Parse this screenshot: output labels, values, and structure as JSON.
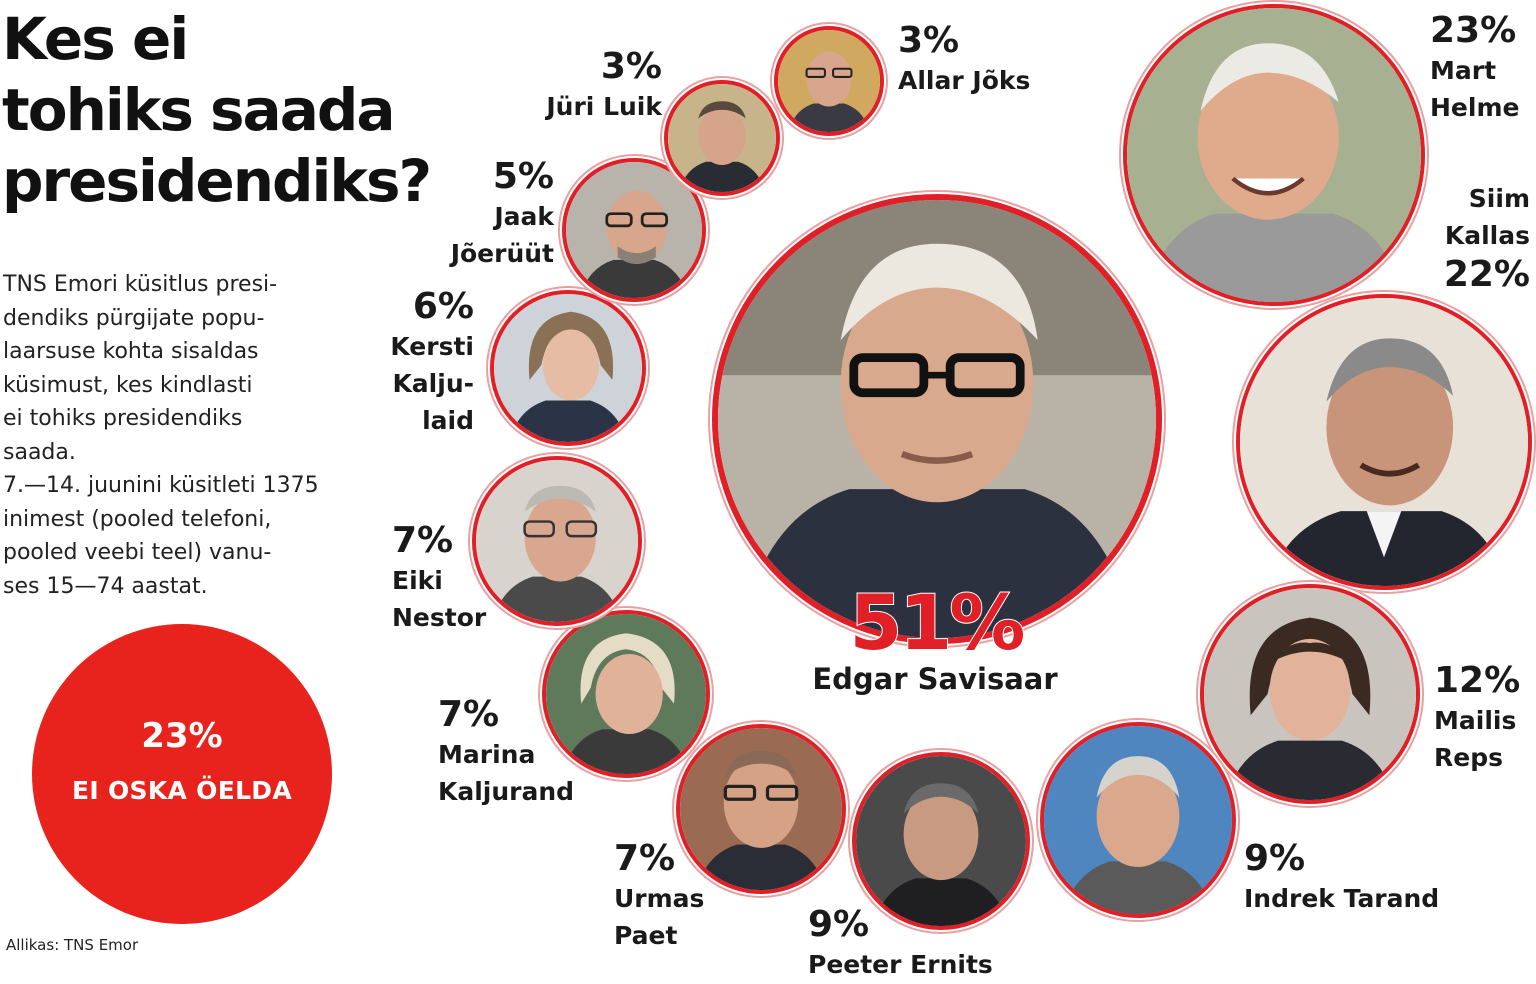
{
  "title": [
    "Kes ei",
    "tohiks saada",
    "presidendiks?"
  ],
  "description": [
    "TNS Emori küsitlus presi-",
    "dendiks pürgijate popu-",
    "laarsuse kohta sisaldas",
    "küsimust, kes kindlasti",
    "ei tohiks presidendiks",
    "saada.",
    "7.—14. juunini küsitleti 1375",
    "inimest (pooled telefoni,",
    "pooled veebi teel) vanu-",
    "ses 15—74 aastat."
  ],
  "dont_know": {
    "percent": "23%",
    "label": "EI OSKA ÖELDA"
  },
  "source": "Allikas: TNS Emor",
  "accent_color": "#e11f26",
  "candidates": [
    {
      "id": "savisaar",
      "percent": "51%",
      "name": [
        "Edgar Savisaar"
      ],
      "value": 51
    },
    {
      "id": "helme",
      "percent": "23%",
      "name": [
        "Mart",
        "Helme"
      ],
      "value": 23
    },
    {
      "id": "kallas",
      "percent": "22%",
      "name": [
        "Siim",
        "Kallas"
      ],
      "value": 22
    },
    {
      "id": "reps",
      "percent": "12%",
      "name": [
        "Mailis",
        "Reps"
      ],
      "value": 12
    },
    {
      "id": "tarand",
      "percent": "9%",
      "name": [
        "Indrek Tarand"
      ],
      "value": 9
    },
    {
      "id": "ernits",
      "percent": "9%",
      "name": [
        "Peeter Ernits"
      ],
      "value": 9
    },
    {
      "id": "paet",
      "percent": "7%",
      "name": [
        "Urmas",
        "Paet"
      ],
      "value": 7
    },
    {
      "id": "kaljurand",
      "percent": "7%",
      "name": [
        "Marina",
        "Kaljurand"
      ],
      "value": 7
    },
    {
      "id": "nestor",
      "percent": "7%",
      "name": [
        "Eiki",
        "Nestor"
      ],
      "value": 7
    },
    {
      "id": "kaljulaid",
      "percent": "6%",
      "name": [
        "Kersti",
        "Kalju-",
        "laid"
      ],
      "value": 6
    },
    {
      "id": "joeruut",
      "percent": "5%",
      "name": [
        "Jaak",
        "Jõerüüt"
      ],
      "value": 5
    },
    {
      "id": "luik",
      "percent": "3%",
      "name": [
        "Jüri Luik"
      ],
      "value": 3
    },
    {
      "id": "joks",
      "percent": "3%",
      "name": [
        "Allar Jõks"
      ],
      "value": 3
    }
  ]
}
